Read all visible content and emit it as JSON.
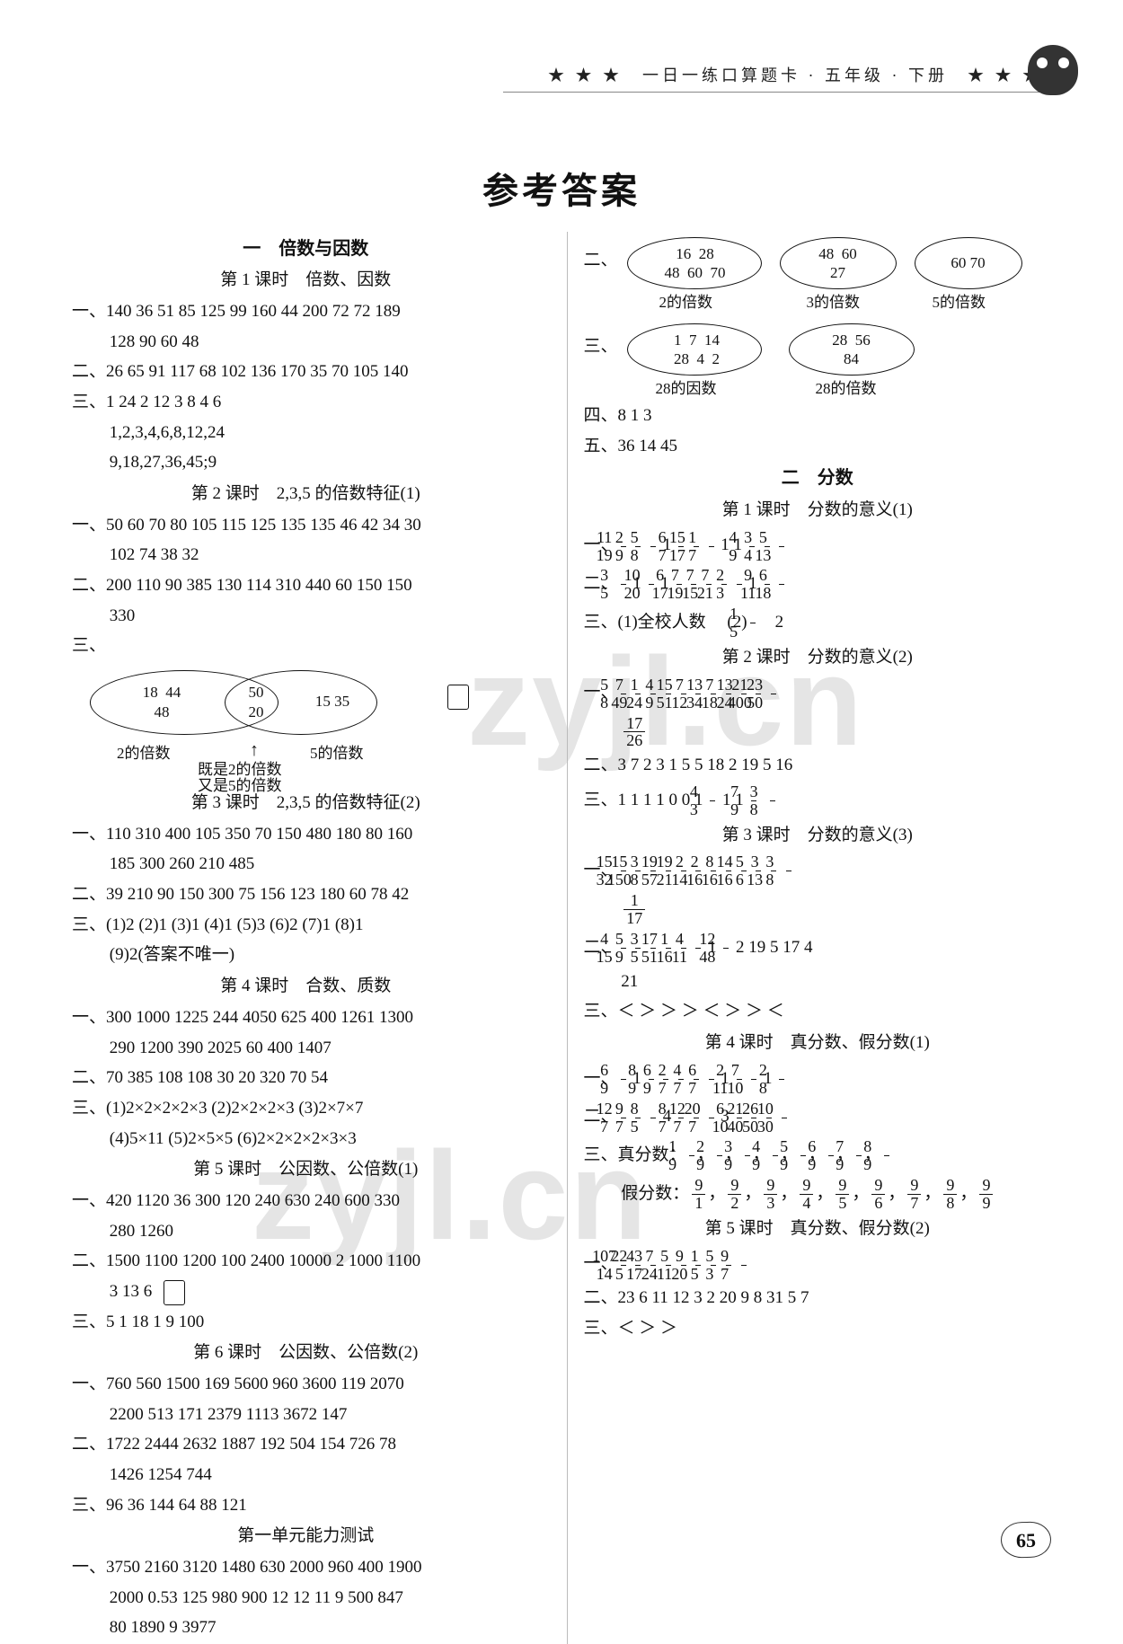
{
  "header": {
    "text": "★ ★ ★　一日一练口算题卡 · 五年级 · 下册　★ ★ ★"
  },
  "title": "参考答案",
  "left": {
    "unit1_title": "一　倍数与因数",
    "l1_title": "第 1 课时　倍数、因数",
    "l1_a": "一、140  36  51  85  125  99  160  44  200  72  72  189",
    "l1_a2": "128  90  60  48",
    "l1_b": "二、26  65  91  117  68  102  136  170  35  70  105  140",
    "l1_c": "三、1  24  2  12  3  8  4  6",
    "l1_c2": "1,2,3,4,6,8,12,24",
    "l1_c3": "9,18,27,36,45;9",
    "l2_title": "第 2 课时　2,3,5 的倍数特征(1)",
    "l2_a": "一、50  60  70  80  105  115  125  135  135  46  42  34  30",
    "l2_a2": "102  74  38  32",
    "l2_b": "二、200  110  90  385  130  114  310  440  60  150  150",
    "l2_b2": "330",
    "l2_c": "三、",
    "venn": {
      "left_nums": "18  44\n48",
      "mid_nums": "50\n20",
      "right_nums": "15  35",
      "left_cap": "2的倍数",
      "right_cap": "5的倍数",
      "both_cap1": "既是2的倍数",
      "both_cap2": "又是5的倍数"
    },
    "l3_title": "第 3 课时　2,3,5 的倍数特征(2)",
    "l3_a": "一、110  310  400  105  350  70  150  480  180  80  160",
    "l3_a2": "185  300  260  210  485",
    "l3_b": "二、39  210  90  150  300  75  156  123  180  60  78  42",
    "l3_c": "三、(1)2  (2)1  (3)1  (4)1  (5)3  (6)2  (7)1  (8)1",
    "l3_c2": "(9)2(答案不唯一)",
    "l4_title": "第 4 课时　合数、质数",
    "l4_a": "一、300  1000  1225  244  4050  625  400  1261  1300",
    "l4_a2": "290  1200  390  2025  60  400  1407",
    "l4_b": "二、70  385  108  108  30  20  320  70  54",
    "l4_c": "三、(1)2×2×2×2×3  (2)2×2×2×3  (3)2×7×7",
    "l4_c2": "(4)5×11  (5)2×5×5  (6)2×2×2×2×3×3",
    "l5_title": "第 5 课时　公因数、公倍数(1)",
    "l5_a": "一、420  1120  36  300  120  240  630  240  600  330",
    "l5_a2": "280  1260",
    "l5_b": "二、1500  1100  1200  100  2400  10000  2  1000  1100",
    "l5_b2": "3  13  6",
    "l5_c": "三、5  1  18  1  9  100",
    "l6_title": "第 6 课时　公因数、公倍数(2)",
    "l6_a": "一、760  560  1500  169  5600  960  3600  119  2070",
    "l6_a2": "2200  513  171  2379  1113  3672  147",
    "l6_b": "二、1722  2444  2632  1887  192  504  154  726  78",
    "l6_b2": "1426  1254  744",
    "l6_c": "三、96  36  144  64  88  121",
    "test_title": "第一单元能力测试",
    "t_a": "一、3750  2160  3120  1480  630  2000  960  400  1900",
    "t_a2": "2000  0.53  125  980  900  12  12  11  9  500  847",
    "t_a3": "80  1890  9  3977"
  },
  "right": {
    "venn_top": {
      "o1": "16  28\n48  60  70",
      "o1_cap": "2的倍数",
      "o2": "48  60\n27",
      "o2_cap": "3的倍数",
      "o3": "60  70",
      "o3_cap": "5的倍数"
    },
    "venn_bot": {
      "o1": "1  7  14\n28  4  2",
      "o1_cap": "28的因数",
      "o2": "28  56\n84",
      "o2_cap": "28的倍数"
    },
    "r4": "四、8  1  3",
    "r5": "五、36  14  45",
    "unit2_title": "二　分数",
    "l1_title": "第 1 课时　分数的意义(1)",
    "l1_a_fracs": [
      [
        "11",
        "19"
      ],
      [
        "2",
        "9"
      ],
      [
        "5",
        "8"
      ],
      "1",
      [
        "6",
        "7"
      ],
      [
        "15",
        "17"
      ],
      [
        "1",
        "7"
      ],
      "1",
      "1",
      [
        "4",
        "9"
      ],
      [
        "3",
        "4"
      ],
      [
        "5",
        "13"
      ]
    ],
    "l1_b_fracs": [
      [
        "3",
        "5"
      ],
      "1",
      [
        "10",
        "20"
      ],
      "1",
      [
        "6",
        "17"
      ],
      [
        "7",
        "19"
      ],
      [
        "7",
        "15"
      ],
      [
        "7",
        "21"
      ],
      [
        "2",
        "3"
      ],
      "1",
      [
        "9",
        "11"
      ],
      [
        "6",
        "18"
      ]
    ],
    "l1_c1": "三、(1)全校人数",
    "l1_c2_pre": "(2)",
    "l1_c2_frac": [
      "1",
      "5"
    ],
    "l1_c2_post": "　2",
    "l2_title": "第 2 课时　分数的意义(2)",
    "l2_a_fracs": [
      [
        "5",
        "8"
      ],
      [
        "7",
        "49"
      ],
      [
        "1",
        "24"
      ],
      [
        "4",
        "9"
      ],
      [
        "15",
        "51"
      ],
      [
        "7",
        "12"
      ],
      [
        "13",
        "34"
      ],
      [
        "7",
        "18"
      ],
      [
        "13",
        "24"
      ],
      [
        "21",
        "400"
      ],
      [
        "23",
        "50"
      ]
    ],
    "l2_a_tail": [
      "17",
      "26"
    ],
    "l2_b": "二、3  7  2  3  1  5  5  18  2  19  5  16",
    "l2_c_pre": "三、1  1  1  1  0  0  1  ",
    "l2_c_f1": [
      "4",
      "3"
    ],
    "l2_c_mid": "  1  1  ",
    "l2_c_f2": [
      "7",
      "9"
    ],
    "l2_c_f3": [
      "3",
      "8"
    ],
    "l3_title": "第 3 课时　分数的意义(3)",
    "l3_a_fracs": [
      [
        "15",
        "32"
      ],
      [
        "15",
        "150"
      ],
      [
        "3",
        "8"
      ],
      [
        "19",
        "57"
      ],
      [
        "19",
        "21"
      ],
      [
        "2",
        "14"
      ],
      [
        "2",
        "16"
      ],
      [
        "8",
        "16"
      ],
      [
        "14",
        "16"
      ],
      [
        "5",
        "6"
      ],
      [
        "3",
        "13"
      ],
      [
        "3",
        "8"
      ]
    ],
    "l3_a_tail": [
      "1",
      "17"
    ],
    "l3_b_fracs": [
      [
        "4",
        "15"
      ],
      [
        "5",
        "9"
      ],
      [
        "3",
        "5"
      ],
      [
        "17",
        "51"
      ],
      [
        "1",
        "16"
      ],
      [
        "4",
        "11"
      ],
      "1",
      [
        "12",
        "48"
      ],
      "2",
      "19",
      "5",
      "17",
      "4"
    ],
    "l3_b_tail": "21",
    "l3_c": "三、＜  ＞  ＞  ＞  ＜  ＞  ＞  ＜",
    "l4_title": "第 4 课时　真分数、假分数(1)",
    "l4_a_fracs": [
      [
        "6",
        "9"
      ],
      "1",
      [
        "8",
        "9"
      ],
      [
        "6",
        "9"
      ],
      [
        "2",
        "7"
      ],
      [
        "4",
        "7"
      ],
      [
        "6",
        "7"
      ],
      "1",
      [
        "2",
        "11"
      ],
      [
        "7",
        "10"
      ],
      "1",
      [
        "2",
        "8"
      ]
    ],
    "l4_b_fracs": [
      [
        "12",
        "7"
      ],
      [
        "9",
        "7"
      ],
      [
        "8",
        "5"
      ],
      "4",
      [
        "8",
        "7"
      ],
      [
        "12",
        "7"
      ],
      [
        "20",
        "7"
      ],
      "3",
      [
        "6",
        "10"
      ],
      [
        "21",
        "40"
      ],
      [
        "26",
        "50"
      ],
      [
        "10",
        "30"
      ]
    ],
    "l4_c_true_label": "三、真分数：",
    "l4_c_true": [
      [
        "1",
        "9"
      ],
      [
        "2",
        "9"
      ],
      [
        "3",
        "9"
      ],
      [
        "4",
        "9"
      ],
      [
        "5",
        "9"
      ],
      [
        "6",
        "9"
      ],
      [
        "7",
        "9"
      ],
      [
        "8",
        "9"
      ]
    ],
    "l4_c_false_label": "假分数：",
    "l4_c_false": [
      [
        "9",
        "1"
      ],
      [
        "9",
        "2"
      ],
      [
        "9",
        "3"
      ],
      [
        "9",
        "4"
      ],
      [
        "9",
        "5"
      ],
      [
        "9",
        "6"
      ],
      [
        "9",
        "7"
      ],
      [
        "9",
        "8"
      ],
      [
        "9",
        "9"
      ]
    ],
    "l5_title": "第 5 课时　真分数、假分数(2)",
    "l5_a_fracs": [
      [
        "107",
        "14"
      ],
      [
        "22",
        "5"
      ],
      [
        "43",
        "17"
      ],
      [
        "7",
        "24"
      ],
      [
        "5",
        "11"
      ],
      [
        "9",
        "20"
      ],
      [
        "1",
        "5"
      ],
      [
        "5",
        "3"
      ],
      [
        "9",
        "7"
      ]
    ],
    "l5_b": "二、23  6  11  12  3  2  20  9  8  31  5  7",
    "l5_c": "三、＜  ＞  ＞"
  },
  "page_number": "65",
  "watermark": "zyjl.cn"
}
